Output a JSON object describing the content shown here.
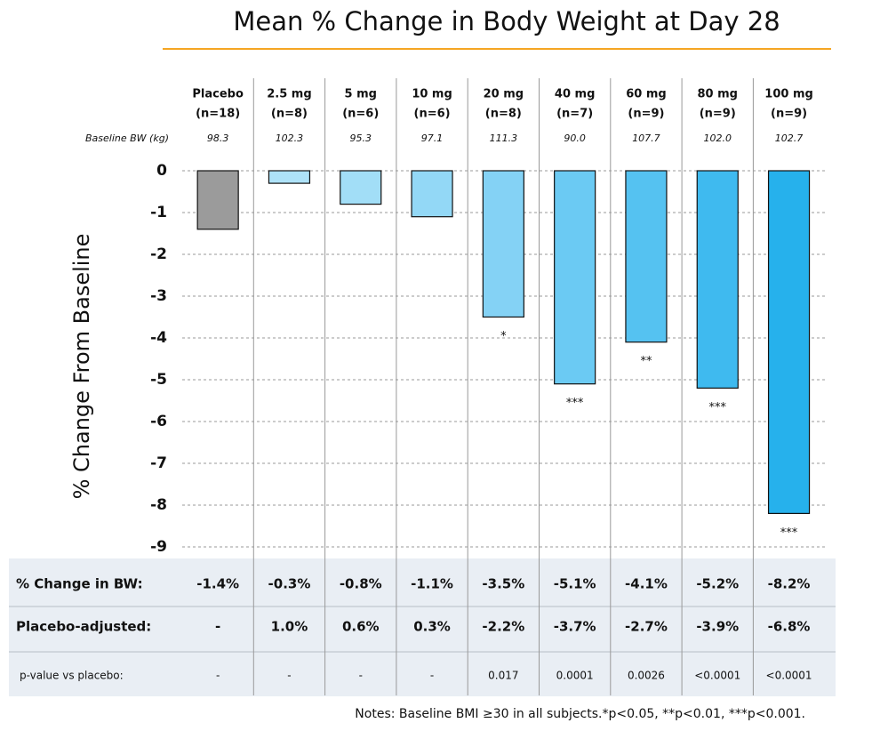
{
  "chart_data": {
    "type": "bar",
    "title": "Mean % Change in Body Weight at Day 28",
    "y_label": "% Change From Baseline",
    "categories": [
      "Placebo",
      "2.5 mg",
      "5 mg",
      "10 mg",
      "20 mg",
      "40 mg",
      "60 mg",
      "80 mg",
      "100 mg"
    ],
    "n_labels": [
      "(n=18)",
      "(n=8)",
      "(n=6)",
      "(n=6)",
      "(n=8)",
      "(n=7)",
      "(n=9)",
      "(n=9)",
      "(n=9)"
    ],
    "baseline_label": "Baseline BW (kg)",
    "baseline": [
      "98.3",
      "102.3",
      "95.3",
      "97.1",
      "111.3",
      "90.0",
      "107.7",
      "102.0",
      "102.7"
    ],
    "values": [
      -1.4,
      -0.3,
      -0.8,
      -1.1,
      -3.5,
      -5.1,
      -4.1,
      -5.2,
      -8.2
    ],
    "value_labels": [
      "-1.4%",
      "-0.3%",
      "-0.8%",
      "-1.1%",
      "-3.5%",
      "-5.1%",
      "-4.1%",
      "-5.2%",
      "-8.2%"
    ],
    "value_labels_title": "% Change in BW:",
    "colors": [
      "#9b9b9b",
      "#aee2f8",
      "#a2def7",
      "#93d8f6",
      "#84d2f5",
      "#6bcaf3",
      "#55c2f1",
      "#3fbaef",
      "#26b1ec"
    ],
    "significance": [
      null,
      null,
      null,
      null,
      "*",
      "***",
      "**",
      "***",
      "***"
    ],
    "table_rows": [
      {
        "label": "Placebo-adjusted:",
        "cells": [
          "-",
          "1.0%",
          "0.6%",
          "0.3%",
          "-2.2%",
          "-3.7%",
          "-2.7%",
          "-3.9%",
          "-6.8%"
        ]
      },
      {
        "label": "p-value vs placebo:",
        "cells": [
          "-",
          "-",
          "-",
          "-",
          "0.017",
          "0.0001",
          "0.0026",
          "<0.0001",
          "<0.0001"
        ]
      }
    ],
    "ylim": [
      -9,
      0
    ],
    "yticks": [
      0,
      -1,
      -2,
      -3,
      -4,
      -5,
      -6,
      -7,
      -8,
      -9
    ],
    "grid": true,
    "note": "Notes:  Baseline BMI ≥30 in all subjects.*p<0.05, **p<0.01, ***p<0.001."
  }
}
